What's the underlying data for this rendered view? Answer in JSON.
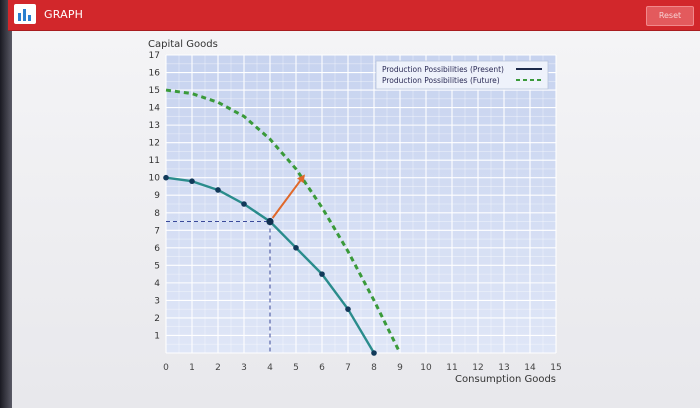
{
  "header": {
    "title": "GRAPH",
    "reset_label": "Reset",
    "logo_icon": "bar-chart-icon",
    "bar_color": "#d2272b"
  },
  "chart_data": {
    "type": "line",
    "ylabel": "Capital Goods",
    "xlabel": "Consumption Goods",
    "xlim": [
      0,
      15
    ],
    "ylim": [
      0,
      17
    ],
    "x_ticks": [
      "0",
      "1",
      "2",
      "3",
      "4",
      "5",
      "6",
      "7",
      "8",
      "9",
      "10",
      "11",
      "12",
      "13",
      "14",
      "15"
    ],
    "y_ticks": [
      "1",
      "2",
      "3",
      "4",
      "5",
      "6",
      "7",
      "8",
      "9",
      "10",
      "11",
      "12",
      "13",
      "14",
      "15",
      "16",
      "17"
    ],
    "grid": true,
    "legend_position": "top-right",
    "series": [
      {
        "name": "Production Possibilities (Present)",
        "style": "solid",
        "color": "#2a8c8c",
        "points": [
          [
            0,
            10
          ],
          [
            1,
            9.8
          ],
          [
            2,
            9.3
          ],
          [
            3,
            8.5
          ],
          [
            4,
            7.5
          ],
          [
            5,
            6
          ],
          [
            6,
            4.5
          ],
          [
            7,
            2.5
          ],
          [
            8,
            0
          ]
        ]
      },
      {
        "name": "Production Possibilities (Future)",
        "style": "dashed",
        "color": "#3a9a3a",
        "points": [
          [
            0,
            15
          ],
          [
            1,
            14.8
          ],
          [
            2,
            14.3
          ],
          [
            3,
            13.5
          ],
          [
            4,
            12.2
          ],
          [
            5,
            10.5
          ],
          [
            6,
            8.3
          ],
          [
            7,
            5.8
          ],
          [
            8,
            3
          ],
          [
            9,
            0
          ]
        ]
      }
    ],
    "highlight_point": [
      4,
      7.5
    ],
    "arrow": {
      "from": [
        4.1,
        7.7
      ],
      "to": [
        5.3,
        10.1
      ],
      "color": "#e0682a"
    }
  }
}
